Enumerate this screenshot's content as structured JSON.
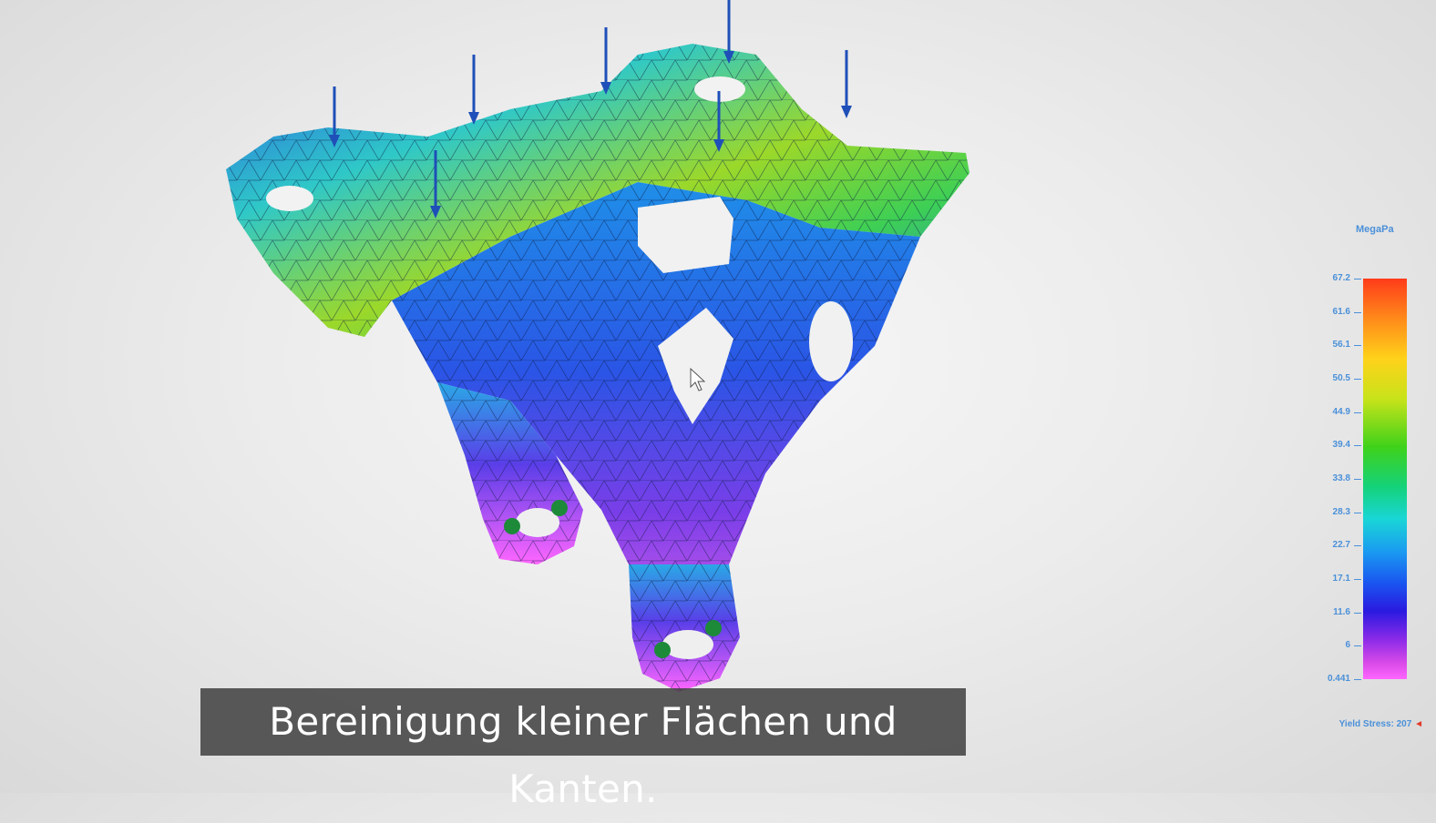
{
  "legend": {
    "unit": "MegaPa",
    "ticks": [
      "67.2",
      "61.6",
      "56.1",
      "50.5",
      "44.9",
      "39.4",
      "33.8",
      "28.3",
      "22.7",
      "17.1",
      "11.6",
      "6",
      "0.441"
    ],
    "yield_label": "Yield Stress: 207",
    "yield_marker_color": "#e23a2a"
  },
  "subtitle": "Bereinigung kleiner Flächen und Kanten.",
  "viewport": {
    "model": "mesh-bracket-stress-plot",
    "colors": {
      "high": "#ff3b1a",
      "mid": "#3fd21a",
      "low": "#ff66ff",
      "arrows": "#1f4fb8",
      "supports": "#1d8a3a"
    }
  }
}
